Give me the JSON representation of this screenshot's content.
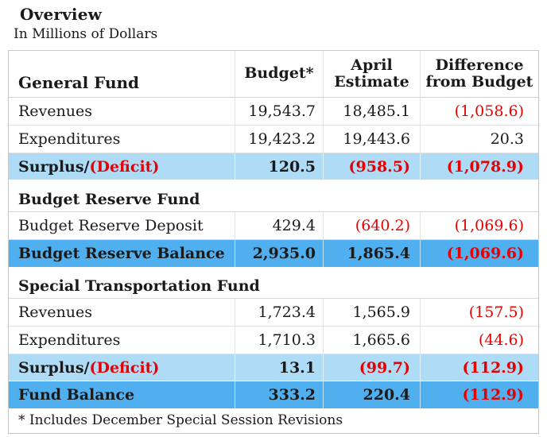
{
  "title": "Overview",
  "subtitle": "In Millions of Dollars",
  "colors": {
    "light_blue": "#AEDCF7",
    "medium_blue": "#4FAFEF",
    "negative_red": "#E80000"
  },
  "table": {
    "header": {
      "fund_label": "General Fund",
      "budget": "Budget*",
      "april_line1": "April",
      "april_line2": "Estimate",
      "diff_line1": "Difference",
      "diff_line2": "from Budget"
    },
    "sections": [
      {
        "title": null,
        "rows": [
          {
            "type": "data",
            "label": "Revenues",
            "values": [
              {
                "text": "19,543.7"
              },
              {
                "text": "18,485.1"
              },
              {
                "text": "(1,058.6)",
                "negative": true
              }
            ]
          },
          {
            "type": "data",
            "label": "Expenditures",
            "values": [
              {
                "text": "19,423.2"
              },
              {
                "text": "19,443.6"
              },
              {
                "text": "20.3"
              }
            ]
          },
          {
            "type": "surplus",
            "label_parts": [
              {
                "text": "Surplus/"
              },
              {
                "text": "(Deficit)",
                "negative": true
              }
            ],
            "values": [
              {
                "text": "120.5"
              },
              {
                "text": "(958.5)",
                "negative": true
              },
              {
                "text": "(1,078.9)",
                "negative": true
              }
            ]
          }
        ]
      },
      {
        "title": "Budget Reserve Fund",
        "rows": [
          {
            "type": "data",
            "label": "Budget Reserve Deposit",
            "values": [
              {
                "text": "429.4"
              },
              {
                "text": "(640.2)",
                "negative": true
              },
              {
                "text": "(1,069.6)",
                "negative": true
              }
            ]
          },
          {
            "type": "balance",
            "label": "Budget Reserve Balance",
            "values": [
              {
                "text": "2,935.0"
              },
              {
                "text": "1,865.4"
              },
              {
                "text": "(1,069.6)",
                "negative": true
              }
            ]
          }
        ]
      },
      {
        "title": "Special Transportation Fund",
        "rows": [
          {
            "type": "data",
            "label": "Revenues",
            "values": [
              {
                "text": "1,723.4"
              },
              {
                "text": "1,565.9"
              },
              {
                "text": "(157.5)",
                "negative": true
              }
            ]
          },
          {
            "type": "data",
            "label": "Expenditures",
            "values": [
              {
                "text": "1,710.3"
              },
              {
                "text": "1,665.6"
              },
              {
                "text": "(44.6)",
                "negative": true
              }
            ]
          },
          {
            "type": "surplus",
            "label_parts": [
              {
                "text": "Surplus/"
              },
              {
                "text": "(Deficit)",
                "negative": true
              }
            ],
            "values": [
              {
                "text": "13.1"
              },
              {
                "text": "(99.7)",
                "negative": true
              },
              {
                "text": "(112.9)",
                "negative": true
              }
            ]
          },
          {
            "type": "balance",
            "label": "Fund Balance",
            "values": [
              {
                "text": "333.2"
              },
              {
                "text": "220.4"
              },
              {
                "text": "(112.9)",
                "negative": true
              }
            ]
          }
        ]
      }
    ],
    "footnote": "* Includes December Special Session Revisions"
  }
}
